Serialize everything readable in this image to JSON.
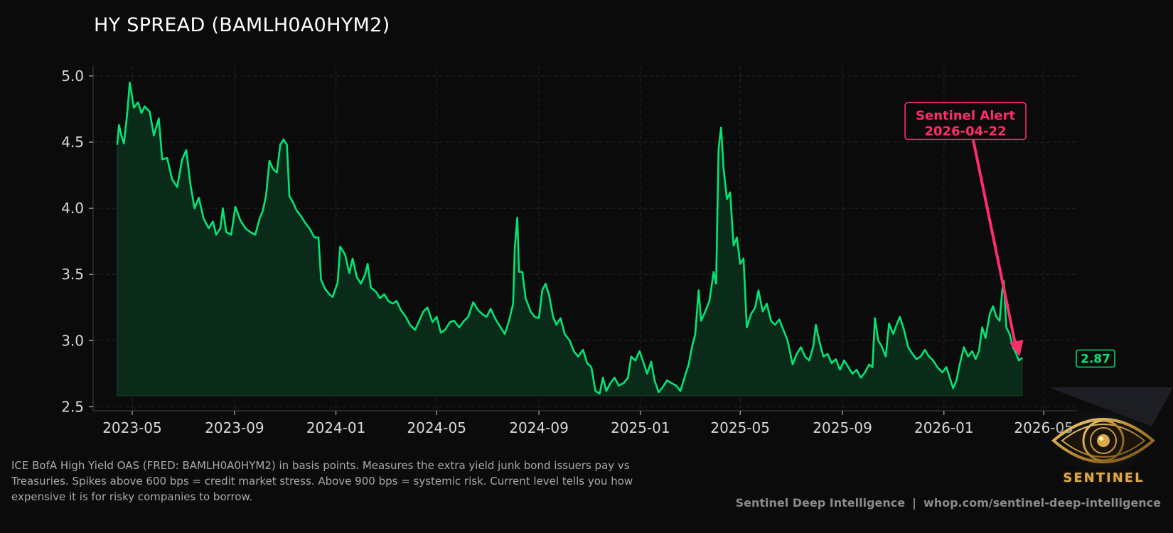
{
  "chart_data": {
    "type": "area",
    "title": "HY SPREAD (BAMLH0A0HYM2)",
    "xlabel": "",
    "ylabel": "",
    "x_range": [
      "2023-03-15",
      "2026-06-10"
    ],
    "ylim": [
      2.47,
      5.08
    ],
    "y_ticks": [
      2.5,
      3.0,
      3.5,
      4.0,
      4.5,
      5.0
    ],
    "x_ticks": [
      "2023-05",
      "2023-09",
      "2024-01",
      "2024-05",
      "2024-09",
      "2025-01",
      "2025-05",
      "2025-09",
      "2026-01",
      "2026-05"
    ],
    "grid": true,
    "line_color": "#00e676",
    "fill_color": "#0a2a1a",
    "alert_color": "#ff2d6a",
    "series": [
      {
        "values_key": "points",
        "points": [
          [
            "2023-04-13",
            4.48
          ],
          [
            "2023-04-15",
            4.63
          ],
          [
            "2023-04-18",
            4.55
          ],
          [
            "2023-04-21",
            4.49
          ],
          [
            "2023-04-25",
            4.72
          ],
          [
            "2023-04-28",
            4.95
          ],
          [
            "2023-05-03",
            4.76
          ],
          [
            "2023-05-08",
            4.8
          ],
          [
            "2023-05-12",
            4.72
          ],
          [
            "2023-05-16",
            4.77
          ],
          [
            "2023-05-22",
            4.73
          ],
          [
            "2023-05-27",
            4.55
          ],
          [
            "2023-06-02",
            4.68
          ],
          [
            "2023-06-06",
            4.37
          ],
          [
            "2023-06-12",
            4.38
          ],
          [
            "2023-06-18",
            4.22
          ],
          [
            "2023-06-24",
            4.16
          ],
          [
            "2023-06-30",
            4.37
          ],
          [
            "2023-07-05",
            4.44
          ],
          [
            "2023-07-10",
            4.18
          ],
          [
            "2023-07-15",
            4.0
          ],
          [
            "2023-07-20",
            4.08
          ],
          [
            "2023-07-26",
            3.92
          ],
          [
            "2023-08-01",
            3.85
          ],
          [
            "2023-08-06",
            3.9
          ],
          [
            "2023-08-10",
            3.8
          ],
          [
            "2023-08-15",
            3.85
          ],
          [
            "2023-08-18",
            4.0
          ],
          [
            "2023-08-22",
            3.82
          ],
          [
            "2023-08-28",
            3.8
          ],
          [
            "2023-09-02",
            4.01
          ],
          [
            "2023-09-08",
            3.91
          ],
          [
            "2023-09-14",
            3.85
          ],
          [
            "2023-09-20",
            3.82
          ],
          [
            "2023-09-26",
            3.8
          ],
          [
            "2023-10-01",
            3.92
          ],
          [
            "2023-10-05",
            3.98
          ],
          [
            "2023-10-09",
            4.1
          ],
          [
            "2023-10-13",
            4.36
          ],
          [
            "2023-10-17",
            4.3
          ],
          [
            "2023-10-22",
            4.27
          ],
          [
            "2023-10-26",
            4.48
          ],
          [
            "2023-10-30",
            4.52
          ],
          [
            "2023-11-03",
            4.48
          ],
          [
            "2023-11-06",
            4.09
          ],
          [
            "2023-11-10",
            4.05
          ],
          [
            "2023-11-15",
            3.98
          ],
          [
            "2023-11-20",
            3.94
          ],
          [
            "2023-11-25",
            3.89
          ],
          [
            "2023-12-01",
            3.84
          ],
          [
            "2023-12-06",
            3.78
          ],
          [
            "2023-12-11",
            3.78
          ],
          [
            "2023-12-14",
            3.46
          ],
          [
            "2023-12-19",
            3.39
          ],
          [
            "2023-12-24",
            3.35
          ],
          [
            "2023-12-28",
            3.33
          ],
          [
            "2024-01-03",
            3.44
          ],
          [
            "2024-01-06",
            3.71
          ],
          [
            "2024-01-12",
            3.65
          ],
          [
            "2024-01-17",
            3.51
          ],
          [
            "2024-01-21",
            3.62
          ],
          [
            "2024-01-26",
            3.48
          ],
          [
            "2024-01-31",
            3.43
          ],
          [
            "2024-02-05",
            3.5
          ],
          [
            "2024-02-08",
            3.58
          ],
          [
            "2024-02-12",
            3.4
          ],
          [
            "2024-02-18",
            3.37
          ],
          [
            "2024-02-23",
            3.32
          ],
          [
            "2024-02-28",
            3.35
          ],
          [
            "2024-03-04",
            3.3
          ],
          [
            "2024-03-09",
            3.28
          ],
          [
            "2024-03-14",
            3.3
          ],
          [
            "2024-03-19",
            3.23
          ],
          [
            "2024-03-25",
            3.18
          ],
          [
            "2024-03-30",
            3.12
          ],
          [
            "2024-04-05",
            3.08
          ],
          [
            "2024-04-10",
            3.15
          ],
          [
            "2024-04-15",
            3.22
          ],
          [
            "2024-04-20",
            3.25
          ],
          [
            "2024-04-26",
            3.14
          ],
          [
            "2024-05-01",
            3.18
          ],
          [
            "2024-05-06",
            3.06
          ],
          [
            "2024-05-11",
            3.08
          ],
          [
            "2024-05-17",
            3.14
          ],
          [
            "2024-05-22",
            3.15
          ],
          [
            "2024-05-28",
            3.1
          ],
          [
            "2024-06-03",
            3.15
          ],
          [
            "2024-06-08",
            3.18
          ],
          [
            "2024-06-14",
            3.29
          ],
          [
            "2024-06-20",
            3.23
          ],
          [
            "2024-06-25",
            3.2
          ],
          [
            "2024-06-30",
            3.18
          ],
          [
            "2024-07-05",
            3.24
          ],
          [
            "2024-07-11",
            3.16
          ],
          [
            "2024-07-17",
            3.1
          ],
          [
            "2024-07-22",
            3.05
          ],
          [
            "2024-07-27",
            3.15
          ],
          [
            "2024-08-01",
            3.28
          ],
          [
            "2024-08-03",
            3.7
          ],
          [
            "2024-08-06",
            3.93
          ],
          [
            "2024-08-08",
            3.52
          ],
          [
            "2024-08-12",
            3.52
          ],
          [
            "2024-08-16",
            3.32
          ],
          [
            "2024-08-22",
            3.22
          ],
          [
            "2024-08-27",
            3.18
          ],
          [
            "2024-09-01",
            3.17
          ],
          [
            "2024-09-05",
            3.38
          ],
          [
            "2024-09-09",
            3.43
          ],
          [
            "2024-09-13",
            3.35
          ],
          [
            "2024-09-18",
            3.18
          ],
          [
            "2024-09-22",
            3.12
          ],
          [
            "2024-09-27",
            3.17
          ],
          [
            "2024-10-02",
            3.05
          ],
          [
            "2024-10-08",
            3.0
          ],
          [
            "2024-10-13",
            2.92
          ],
          [
            "2024-10-18",
            2.88
          ],
          [
            "2024-10-24",
            2.93
          ],
          [
            "2024-10-29",
            2.83
          ],
          [
            "2024-11-03",
            2.8
          ],
          [
            "2024-11-08",
            2.62
          ],
          [
            "2024-11-13",
            2.6
          ],
          [
            "2024-11-17",
            2.72
          ],
          [
            "2024-11-21",
            2.62
          ],
          [
            "2024-11-26",
            2.68
          ],
          [
            "2024-12-01",
            2.72
          ],
          [
            "2024-12-06",
            2.66
          ],
          [
            "2024-12-12",
            2.68
          ],
          [
            "2024-12-17",
            2.72
          ],
          [
            "2024-12-21",
            2.88
          ],
          [
            "2024-12-26",
            2.85
          ],
          [
            "2024-12-31",
            2.92
          ],
          [
            "2025-01-05",
            2.83
          ],
          [
            "2025-01-09",
            2.75
          ],
          [
            "2025-01-14",
            2.84
          ],
          [
            "2025-01-18",
            2.7
          ],
          [
            "2025-01-23",
            2.61
          ],
          [
            "2025-01-28",
            2.65
          ],
          [
            "2025-02-02",
            2.7
          ],
          [
            "2025-02-07",
            2.68
          ],
          [
            "2025-02-13",
            2.66
          ],
          [
            "2025-02-18",
            2.62
          ],
          [
            "2025-02-23",
            2.72
          ],
          [
            "2025-02-28",
            2.82
          ],
          [
            "2025-03-04",
            2.95
          ],
          [
            "2025-03-08",
            3.05
          ],
          [
            "2025-03-12",
            3.38
          ],
          [
            "2025-03-15",
            3.15
          ],
          [
            "2025-03-20",
            3.22
          ],
          [
            "2025-03-25",
            3.3
          ],
          [
            "2025-03-30",
            3.52
          ],
          [
            "2025-04-02",
            3.43
          ],
          [
            "2025-04-05",
            4.45
          ],
          [
            "2025-04-08",
            4.61
          ],
          [
            "2025-04-11",
            4.3
          ],
          [
            "2025-04-15",
            4.07
          ],
          [
            "2025-04-19",
            4.12
          ],
          [
            "2025-04-23",
            3.72
          ],
          [
            "2025-04-27",
            3.78
          ],
          [
            "2025-05-01",
            3.58
          ],
          [
            "2025-05-05",
            3.62
          ],
          [
            "2025-05-09",
            3.1
          ],
          [
            "2025-05-14",
            3.2
          ],
          [
            "2025-05-19",
            3.25
          ],
          [
            "2025-05-23",
            3.38
          ],
          [
            "2025-05-28",
            3.22
          ],
          [
            "2025-06-02",
            3.28
          ],
          [
            "2025-06-07",
            3.15
          ],
          [
            "2025-06-12",
            3.12
          ],
          [
            "2025-06-17",
            3.16
          ],
          [
            "2025-06-22",
            3.08
          ],
          [
            "2025-06-27",
            3.0
          ],
          [
            "2025-07-03",
            2.82
          ],
          [
            "2025-07-08",
            2.9
          ],
          [
            "2025-07-13",
            2.95
          ],
          [
            "2025-07-18",
            2.88
          ],
          [
            "2025-07-23",
            2.85
          ],
          [
            "2025-07-28",
            2.96
          ],
          [
            "2025-07-31",
            3.12
          ],
          [
            "2025-08-04",
            3.0
          ],
          [
            "2025-08-09",
            2.88
          ],
          [
            "2025-08-14",
            2.9
          ],
          [
            "2025-08-19",
            2.83
          ],
          [
            "2025-08-24",
            2.86
          ],
          [
            "2025-08-29",
            2.78
          ],
          [
            "2025-09-03",
            2.85
          ],
          [
            "2025-09-08",
            2.8
          ],
          [
            "2025-09-13",
            2.75
          ],
          [
            "2025-09-18",
            2.78
          ],
          [
            "2025-09-23",
            2.72
          ],
          [
            "2025-09-28",
            2.76
          ],
          [
            "2025-10-03",
            2.82
          ],
          [
            "2025-10-07",
            2.8
          ],
          [
            "2025-10-10",
            3.17
          ],
          [
            "2025-10-14",
            3.0
          ],
          [
            "2025-10-18",
            2.96
          ],
          [
            "2025-10-23",
            2.88
          ],
          [
            "2025-10-27",
            3.13
          ],
          [
            "2025-11-01",
            3.05
          ],
          [
            "2025-11-05",
            3.12
          ],
          [
            "2025-11-09",
            3.18
          ],
          [
            "2025-11-14",
            3.08
          ],
          [
            "2025-11-19",
            2.95
          ],
          [
            "2025-11-24",
            2.9
          ],
          [
            "2025-11-29",
            2.86
          ],
          [
            "2025-12-04",
            2.88
          ],
          [
            "2025-12-09",
            2.93
          ],
          [
            "2025-12-14",
            2.88
          ],
          [
            "2025-12-19",
            2.85
          ],
          [
            "2025-12-24",
            2.8
          ],
          [
            "2025-12-30",
            2.76
          ],
          [
            "2026-01-04",
            2.8
          ],
          [
            "2026-01-08",
            2.72
          ],
          [
            "2026-01-12",
            2.64
          ],
          [
            "2026-01-16",
            2.7
          ],
          [
            "2026-01-20",
            2.82
          ],
          [
            "2026-01-25",
            2.95
          ],
          [
            "2026-01-30",
            2.88
          ],
          [
            "2026-02-04",
            2.92
          ],
          [
            "2026-02-08",
            2.86
          ],
          [
            "2026-02-12",
            2.92
          ],
          [
            "2026-02-16",
            3.1
          ],
          [
            "2026-02-20",
            3.02
          ],
          [
            "2026-02-25",
            3.2
          ],
          [
            "2026-03-01",
            3.26
          ],
          [
            "2026-03-05",
            3.18
          ],
          [
            "2026-03-09",
            3.15
          ],
          [
            "2026-03-12",
            3.38
          ],
          [
            "2026-03-14",
            3.45
          ],
          [
            "2026-03-17",
            3.1
          ],
          [
            "2026-03-21",
            3.05
          ],
          [
            "2026-03-25",
            2.95
          ],
          [
            "2026-03-29",
            2.9
          ],
          [
            "2026-04-01",
            2.85
          ],
          [
            "2026-04-05",
            2.87
          ]
        ]
      }
    ],
    "annotation": {
      "label_line1": "Sentinel Alert",
      "label_line2": "2026-04-22",
      "point_x": "2026-04-02",
      "point_y": 2.88,
      "text_x": "2026-02-01",
      "text_y": 4.6
    },
    "last_value_label": "2.87"
  },
  "description": "ICE BofA High Yield OAS (FRED: BAMLH0A0HYM2) in basis points. Measures the extra yield junk bond issuers pay vs Treasuries. Spikes above 600 bps = credit market stress. Above 900 bps = systemic risk. Current level tells you how expensive it is for risky companies to borrow.",
  "footer": {
    "brand": "Sentinel Deep Intelligence",
    "separator": "|",
    "url": "whop.com/sentinel-deep-intelligence"
  },
  "logo": {
    "text": "SENTINEL",
    "icon": "eye-icon",
    "color": "#d9a94a"
  }
}
